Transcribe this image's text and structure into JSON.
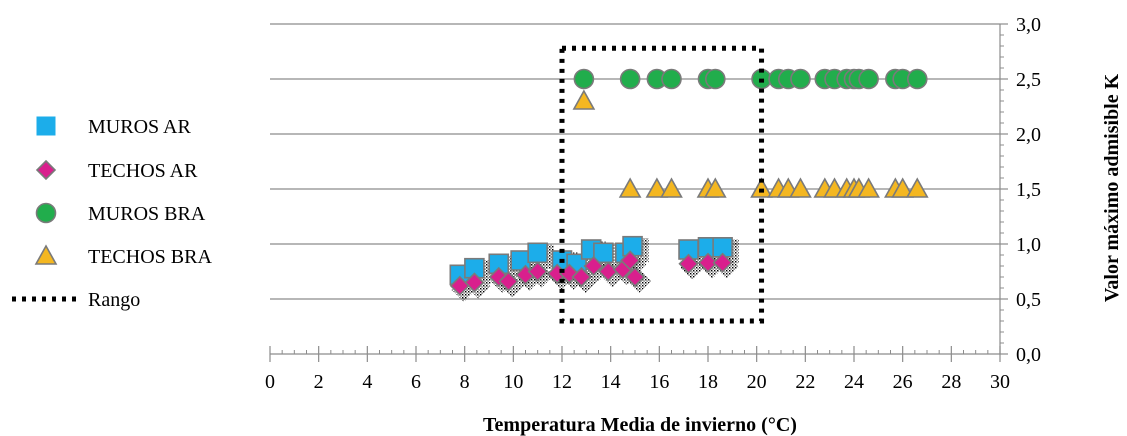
{
  "chart_data": {
    "type": "scatter",
    "xlabel": "Temperatura Media  de invierno (°C)",
    "ylabel": "Valor máximo admisible K",
    "xlim": [
      0,
      30
    ],
    "ylim": [
      0.0,
      3.0
    ],
    "x_ticks": [
      "0",
      "2",
      "4",
      "6",
      "8",
      "10",
      "12",
      "14",
      "16",
      "18",
      "20",
      "22",
      "24",
      "26",
      "28",
      "30"
    ],
    "y_ticks": [
      "0,0",
      "0,5",
      "1,0",
      "1,5",
      "2,0",
      "2,5",
      "3,0"
    ],
    "y_axis_side": "right",
    "grid": "horizontal",
    "legend_position": "left",
    "series": [
      {
        "name": "MUROS AR",
        "marker": "square",
        "color": "#1cadea",
        "x": [
          7.8,
          8.4,
          9.4,
          10.3,
          11.0,
          12.0,
          12.6,
          13.2,
          13.7,
          14.6,
          14.9,
          17.2,
          18.0,
          18.6
        ],
        "y": [
          0.72,
          0.78,
          0.82,
          0.85,
          0.92,
          0.85,
          0.82,
          0.95,
          0.92,
          0.92,
          0.98,
          0.95,
          0.97,
          0.97
        ]
      },
      {
        "name": "TECHOS AR",
        "marker": "diamond",
        "color": "#d91f8d",
        "x": [
          7.8,
          8.4,
          9.4,
          9.8,
          10.5,
          11.0,
          11.8,
          12.3,
          12.8,
          13.3,
          13.9,
          14.5,
          14.8,
          15.0,
          17.2,
          18.0,
          18.6
        ],
        "y": [
          0.62,
          0.65,
          0.7,
          0.66,
          0.72,
          0.75,
          0.73,
          0.73,
          0.7,
          0.8,
          0.75,
          0.77,
          0.85,
          0.7,
          0.82,
          0.83,
          0.83
        ]
      },
      {
        "name": "MUROS BRA",
        "marker": "circle",
        "color": "#21ad4c",
        "x": [
          12.9,
          14.8,
          15.9,
          16.5,
          18.0,
          18.3,
          20.2,
          20.9,
          21.3,
          21.8,
          22.8,
          23.2,
          23.7,
          24.0,
          24.2,
          24.6,
          25.7,
          26.0,
          26.6
        ],
        "y": [
          2.5,
          2.5,
          2.5,
          2.5,
          2.5,
          2.5,
          2.5,
          2.5,
          2.5,
          2.5,
          2.5,
          2.5,
          2.5,
          2.5,
          2.5,
          2.5,
          2.5,
          2.5,
          2.5
        ]
      },
      {
        "name": "TECHOS BRA",
        "marker": "triangle",
        "color": "#f4b721",
        "x": [
          12.9,
          14.8,
          15.9,
          16.5,
          18.0,
          18.3,
          20.2,
          20.9,
          21.3,
          21.8,
          22.8,
          23.2,
          23.7,
          24.0,
          24.2,
          24.6,
          25.7,
          26.0,
          26.6
        ],
        "y": [
          2.3,
          1.5,
          1.5,
          1.5,
          1.5,
          1.5,
          1.5,
          1.5,
          1.5,
          1.5,
          1.5,
          1.5,
          1.5,
          1.5,
          1.5,
          1.5,
          1.5,
          1.5,
          1.5
        ]
      }
    ],
    "range_box": {
      "name": "Rango",
      "x": [
        12,
        20.2
      ],
      "y": [
        0.3,
        2.78
      ],
      "style": "dotted",
      "color": "#000000"
    }
  }
}
